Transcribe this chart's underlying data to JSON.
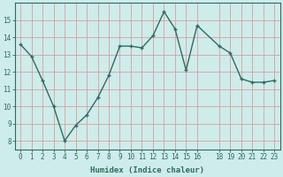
{
  "x": [
    0,
    1,
    2,
    3,
    4,
    5,
    6,
    7,
    8,
    9,
    10,
    11,
    12,
    13,
    14,
    15,
    16,
    18,
    19,
    20,
    21,
    22,
    23
  ],
  "y": [
    13.6,
    12.9,
    11.5,
    10.0,
    8.0,
    8.9,
    9.5,
    10.5,
    11.8,
    13.5,
    13.5,
    13.4,
    14.1,
    15.5,
    14.5,
    12.1,
    14.7,
    13.5,
    13.1,
    11.6,
    11.4,
    11.4,
    11.5
  ],
  "line_color": "#2e6b63",
  "marker": "+",
  "marker_size": 3.5,
  "bg_color": "#ceecea",
  "grid_color": "#d4a0a0",
  "xlabel": "Humidex (Indice chaleur)",
  "xlim": [
    -0.5,
    23.5
  ],
  "ylim": [
    7.5,
    16.0
  ],
  "yticks": [
    8,
    9,
    10,
    11,
    12,
    13,
    14,
    15
  ],
  "xticks": [
    0,
    1,
    2,
    3,
    4,
    5,
    6,
    7,
    8,
    9,
    10,
    11,
    12,
    13,
    14,
    15,
    16,
    18,
    19,
    20,
    21,
    22,
    23
  ],
  "xtick_labels": [
    "0",
    "1",
    "2",
    "3",
    "4",
    "5",
    "6",
    "7",
    "8",
    "9",
    "10",
    "11",
    "12",
    "13",
    "14",
    "15",
    "16",
    "18",
    "19",
    "20",
    "21",
    "22",
    "23"
  ],
  "font_color": "#2e6b63",
  "spine_color": "#2e6b63",
  "tick_fontsize": 5.5,
  "xlabel_fontsize": 6.5,
  "linewidth": 1.0
}
